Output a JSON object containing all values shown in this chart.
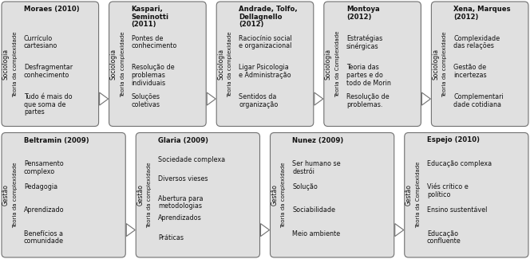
{
  "rows": [
    {
      "boxes": [
        {
          "label1": "Sociologia",
          "label2": "Teoria da complexidade",
          "lines": [
            "Moraes (2010)",
            "Currículo\ncartesiano",
            "Desfragmentar\nconhecimento",
            "Tudo é mais do\nque soma de\npartes"
          ],
          "has_arrow": true
        },
        {
          "label1": "Sociologia",
          "label2": "Teoria da complexidade",
          "lines": [
            "Kaspari,\nSeminotti\n(2011)",
            "Pontes de\nconhecimento",
            "Resolução de\nproblemas\nindividuais",
            "Soluções\ncoletivas"
          ],
          "has_arrow": true
        },
        {
          "label1": "Sociologia",
          "label2": "Teoria da complexidade",
          "lines": [
            "Andrade, Tolfo,\nDellagnello\n(2012)",
            "Raciocínio social\ne organizacional",
            "Ligar Psicologia\ne Administração",
            "Sentidos da\norganização"
          ],
          "has_arrow": true
        },
        {
          "label1": "Sociologia",
          "label2": "Teoria da Complexidade",
          "lines": [
            "Montoya\n(2012)",
            "Estratégias\nsinérgicas",
            "Teoria das\npartes e do\ntodo de Morin",
            "Resolução de\nproblemas."
          ],
          "has_arrow": true
        },
        {
          "label1": "Sociologia",
          "label2": "Teoria da complexidade",
          "lines": [
            "Xena, Marques\n(2012)",
            "Complexidade\ndas relações",
            "Gestão de\nincertezas",
            "Complementari\ndade cotidiana"
          ],
          "has_arrow": false
        }
      ]
    },
    {
      "boxes": [
        {
          "label1": "Gestão",
          "label2": "Teoria da complexidade",
          "lines": [
            "Beltramin (2009)",
            "Pensamento\ncomplexo",
            "Pedagogia",
            "Aprendizado",
            "Benefícios a\ncomunidade"
          ],
          "has_arrow": true
        },
        {
          "label1": "Gestão",
          "label2": "Teoria da complexidade",
          "lines": [
            "Glaria (2009)",
            "Sociedade complexa",
            "Diversos vieses",
            "Abertura para\nmetodologias",
            "Aprendizados",
            "Práticas"
          ],
          "has_arrow": true
        },
        {
          "label1": "Gestão",
          "label2": "Teoria da complexidade",
          "lines": [
            "Nunez (2009)",
            "Ser humano se\ndestrói",
            "Solução",
            "Sociabilidade",
            "Meio ambiente"
          ],
          "has_arrow": true
        },
        {
          "label1": "Gestão",
          "label2": "Teoria da Complexidade",
          "lines": [
            "Espejo (2010)",
            "Educação complexa",
            "Viés crítico e\npolítico",
            "Ensino sustentável",
            "Educação\nconfluente"
          ],
          "has_arrow": false
        }
      ]
    }
  ],
  "box_bg": "#e0e0e0",
  "box_border": "#707070",
  "arrow_fill": "#ffffff",
  "arrow_edge": "#707070",
  "text_color": "#111111",
  "bg_color": "#ffffff",
  "font_size": 5.8,
  "label_font_size": 5.5,
  "fig_w": 6.64,
  "fig_h": 3.25,
  "dpi": 100
}
